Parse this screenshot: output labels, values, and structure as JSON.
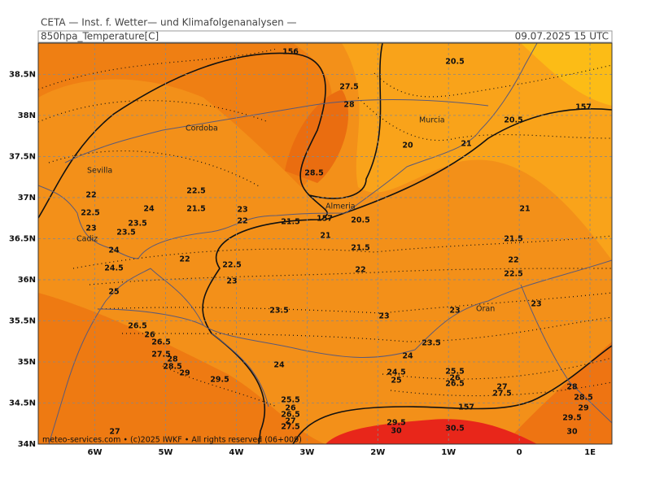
{
  "header": {
    "institute": "CETA — Inst. f. Wetter— und Klimafolgenanalysen —",
    "parameter": "850hpa_Temperature[C]",
    "valid_time": "09.07.2025 15 UTC"
  },
  "map": {
    "xlim": [
      -6.8,
      1.31
    ],
    "ylim": [
      34,
      38.88
    ],
    "lon_ticks": [
      {
        "value": -6,
        "label": "6W"
      },
      {
        "value": -5,
        "label": "5W"
      },
      {
        "value": -4,
        "label": "4W"
      },
      {
        "value": -3,
        "label": "3W"
      },
      {
        "value": -2,
        "label": "2W"
      },
      {
        "value": -1,
        "label": "1W"
      },
      0,
      {
        "value": 1,
        "label": "1E"
      }
    ],
    "lat_ticks": [
      {
        "value": 38.5,
        "label": "38.5N"
      },
      {
        "value": 38,
        "label": "38N"
      },
      {
        "value": 37.5,
        "label": "37.5N"
      },
      {
        "value": 37,
        "label": "37N"
      },
      {
        "value": 36.5,
        "label": "36.5N"
      },
      {
        "value": 36,
        "label": "36N"
      },
      {
        "value": 35.5,
        "label": "35.5N"
      },
      {
        "value": 35,
        "label": "35N"
      },
      {
        "value": 34.5,
        "label": "34.5N"
      },
      {
        "value": 34,
        "label": "34N"
      }
    ],
    "cities": [
      "Sevilla",
      "Cordoba",
      "Murcia",
      "Almeria",
      "Cadiz",
      "Oran"
    ],
    "contour_labels": [
      156,
      20.5,
      27.5,
      28,
      157,
      20.5,
      20,
      21,
      28.5,
      22,
      22.5,
      24,
      21.5,
      23,
      22,
      21.5,
      157,
      20.5,
      21,
      22.5,
      23,
      23.5,
      23.5,
      21,
      21.5,
      21.5,
      24,
      22,
      22.5,
      24.5,
      22,
      22,
      22.5,
      23,
      25,
      23.5,
      23,
      23,
      23,
      26.5,
      26,
      23.5,
      24,
      24,
      24.5,
      25,
      25.5,
      26,
      26.5,
      27,
      27.5,
      28,
      28.5,
      29,
      29.5,
      30,
      29.5,
      29,
      28.5,
      28,
      27.5,
      26.5,
      25.5,
      26,
      26.5,
      27,
      27.5,
      157,
      30.5,
      29.5,
      30,
      27
    ]
  },
  "footer": "meteo-services.com • (c)2025 IWKF • All rights reserved (06+009)"
}
